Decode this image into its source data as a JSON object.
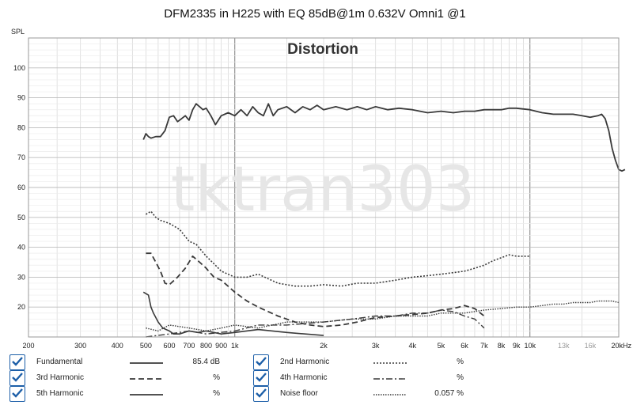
{
  "chart_data": {
    "type": "line",
    "title": "DFM2335 in H225 with EQ 85dB@1m 0.632V Omni1 @1",
    "subtitle": "Distortion",
    "ylabel": "SPL",
    "xscale": "log",
    "xlim": [
      200,
      20000
    ],
    "ylim": [
      10,
      110
    ],
    "y_ticks": [
      20,
      30,
      40,
      50,
      60,
      70,
      80,
      90,
      100
    ],
    "x_ticks": [
      {
        "v": 200,
        "label": "200"
      },
      {
        "v": 300,
        "label": "300"
      },
      {
        "v": 400,
        "label": "400"
      },
      {
        "v": 500,
        "label": "500"
      },
      {
        "v": 600,
        "label": "600"
      },
      {
        "v": 700,
        "label": "700"
      },
      {
        "v": 800,
        "label": "800"
      },
      {
        "v": 900,
        "label": "900"
      },
      {
        "v": 1000,
        "label": "1k"
      },
      {
        "v": 2000,
        "label": "2k"
      },
      {
        "v": 3000,
        "label": "3k"
      },
      {
        "v": 4000,
        "label": "4k"
      },
      {
        "v": 5000,
        "label": "5k"
      },
      {
        "v": 6000,
        "label": "6k"
      },
      {
        "v": 7000,
        "label": "7k"
      },
      {
        "v": 8000,
        "label": "8k"
      },
      {
        "v": 9000,
        "label": "9k"
      },
      {
        "v": 10000,
        "label": "10k"
      },
      {
        "v": 13000,
        "label": "13k",
        "minor": true
      },
      {
        "v": 16000,
        "label": "16k",
        "minor": true
      },
      {
        "v": 20000,
        "label": "20kHz"
      }
    ],
    "grid": true,
    "watermark": "tktran303",
    "series": [
      {
        "name": "Fundamental",
        "dash": "",
        "width": 1.8,
        "points": [
          [
            490,
            76
          ],
          [
            500,
            78
          ],
          [
            510,
            77
          ],
          [
            520,
            76.5
          ],
          [
            540,
            77
          ],
          [
            560,
            77
          ],
          [
            580,
            79
          ],
          [
            600,
            83.5
          ],
          [
            620,
            84
          ],
          [
            640,
            82
          ],
          [
            660,
            83
          ],
          [
            680,
            84
          ],
          [
            700,
            82.5
          ],
          [
            720,
            86
          ],
          [
            740,
            88
          ],
          [
            760,
            87
          ],
          [
            780,
            86
          ],
          [
            800,
            86.5
          ],
          [
            830,
            84
          ],
          [
            860,
            81
          ],
          [
            900,
            84
          ],
          [
            950,
            85
          ],
          [
            1000,
            84
          ],
          [
            1050,
            86
          ],
          [
            1100,
            84
          ],
          [
            1150,
            87
          ],
          [
            1200,
            85
          ],
          [
            1250,
            84
          ],
          [
            1300,
            88
          ],
          [
            1350,
            84
          ],
          [
            1400,
            86
          ],
          [
            1500,
            87
          ],
          [
            1600,
            85
          ],
          [
            1700,
            87
          ],
          [
            1800,
            86
          ],
          [
            1900,
            87.5
          ],
          [
            2000,
            86
          ],
          [
            2200,
            87
          ],
          [
            2400,
            86
          ],
          [
            2600,
            87
          ],
          [
            2800,
            86
          ],
          [
            3000,
            87
          ],
          [
            3300,
            86
          ],
          [
            3600,
            86.5
          ],
          [
            4000,
            86
          ],
          [
            4500,
            85
          ],
          [
            5000,
            85.5
          ],
          [
            5500,
            85
          ],
          [
            6000,
            85.5
          ],
          [
            6500,
            85.5
          ],
          [
            7000,
            86
          ],
          [
            7500,
            86
          ],
          [
            8000,
            86
          ],
          [
            8500,
            86.5
          ],
          [
            9000,
            86.5
          ],
          [
            10000,
            86
          ],
          [
            11000,
            85
          ],
          [
            12000,
            84.5
          ],
          [
            13000,
            84.5
          ],
          [
            14000,
            84.5
          ],
          [
            15000,
            84
          ],
          [
            16000,
            83.5
          ],
          [
            17000,
            84
          ],
          [
            17500,
            84.5
          ],
          [
            18000,
            83
          ],
          [
            18500,
            79
          ],
          [
            19000,
            73
          ],
          [
            19500,
            69
          ],
          [
            20000,
            66
          ],
          [
            20500,
            65.5
          ],
          [
            21000,
            66
          ]
        ]
      },
      {
        "name": "2nd Harmonic",
        "dash": "2 2",
        "width": 1.6,
        "points": [
          [
            500,
            51
          ],
          [
            520,
            52
          ],
          [
            540,
            50
          ],
          [
            560,
            49
          ],
          [
            600,
            48
          ],
          [
            650,
            46
          ],
          [
            700,
            42
          ],
          [
            740,
            41
          ],
          [
            800,
            37
          ],
          [
            860,
            34
          ],
          [
            900,
            32
          ],
          [
            1000,
            30
          ],
          [
            1100,
            30
          ],
          [
            1200,
            31
          ],
          [
            1400,
            28
          ],
          [
            1600,
            27
          ],
          [
            1800,
            27
          ],
          [
            2000,
            27.5
          ],
          [
            2300,
            27
          ],
          [
            2600,
            28
          ],
          [
            3000,
            28
          ],
          [
            3500,
            29
          ],
          [
            4000,
            30
          ],
          [
            4500,
            30.5
          ],
          [
            5000,
            31
          ],
          [
            5500,
            31.5
          ],
          [
            6000,
            32
          ],
          [
            6500,
            33
          ],
          [
            7000,
            34
          ],
          [
            7500,
            35.5
          ],
          [
            8000,
            36.5
          ],
          [
            8500,
            37.5
          ],
          [
            9000,
            37
          ],
          [
            9500,
            37
          ],
          [
            10000,
            37
          ]
        ]
      },
      {
        "name": "3rd Harmonic",
        "dash": "7 4",
        "width": 1.8,
        "points": [
          [
            500,
            38
          ],
          [
            520,
            38
          ],
          [
            540,
            35
          ],
          [
            560,
            32
          ],
          [
            580,
            28
          ],
          [
            600,
            27.5
          ],
          [
            640,
            30
          ],
          [
            680,
            33
          ],
          [
            720,
            37
          ],
          [
            760,
            35
          ],
          [
            800,
            33
          ],
          [
            850,
            30
          ],
          [
            900,
            29
          ],
          [
            1000,
            25
          ],
          [
            1100,
            22
          ],
          [
            1200,
            20
          ],
          [
            1400,
            17
          ],
          [
            1600,
            15
          ],
          [
            1800,
            14
          ],
          [
            2000,
            13.5
          ],
          [
            2300,
            14
          ],
          [
            2600,
            15
          ],
          [
            3000,
            16.5
          ],
          [
            3500,
            17
          ],
          [
            4000,
            17.5
          ],
          [
            4500,
            18
          ],
          [
            5000,
            19
          ],
          [
            5500,
            19.5
          ],
          [
            6000,
            20.5
          ],
          [
            6500,
            19.5
          ],
          [
            7000,
            17
          ]
        ]
      },
      {
        "name": "4th Harmonic",
        "dash": "8 3 2 3",
        "width": 1.4,
        "points": [
          [
            500,
            10
          ],
          [
            600,
            11
          ],
          [
            700,
            12
          ],
          [
            800,
            11
          ],
          [
            1000,
            12
          ],
          [
            1200,
            14
          ],
          [
            1500,
            14
          ],
          [
            2000,
            15
          ],
          [
            2500,
            16
          ],
          [
            3000,
            17
          ],
          [
            3500,
            17
          ],
          [
            4000,
            18
          ],
          [
            4500,
            18
          ],
          [
            5000,
            19
          ],
          [
            5500,
            18.5
          ],
          [
            6000,
            17
          ],
          [
            6500,
            16
          ],
          [
            7000,
            13
          ]
        ]
      },
      {
        "name": "5th Harmonic",
        "dash": "",
        "width": 1.6,
        "points": [
          [
            490,
            25
          ],
          [
            510,
            24
          ],
          [
            520,
            20
          ],
          [
            530,
            18
          ],
          [
            550,
            15
          ],
          [
            570,
            13
          ],
          [
            600,
            12
          ],
          [
            620,
            11
          ],
          [
            650,
            11
          ],
          [
            700,
            12
          ],
          [
            750,
            11.5
          ],
          [
            800,
            12
          ],
          [
            900,
            11
          ],
          [
            1000,
            11.5
          ],
          [
            1200,
            12.5
          ],
          [
            1500,
            11.5
          ],
          [
            2000,
            10.5
          ]
        ]
      },
      {
        "name": "Noise floor",
        "dash": "1.5 1.5",
        "width": 1.4,
        "points": [
          [
            500,
            13
          ],
          [
            550,
            12
          ],
          [
            600,
            14
          ],
          [
            700,
            13
          ],
          [
            800,
            12
          ],
          [
            900,
            13
          ],
          [
            1000,
            14
          ],
          [
            1200,
            13
          ],
          [
            1500,
            15
          ],
          [
            2000,
            15
          ],
          [
            2500,
            16
          ],
          [
            3000,
            16
          ],
          [
            3500,
            17
          ],
          [
            4000,
            17
          ],
          [
            4500,
            17
          ],
          [
            5000,
            18
          ],
          [
            6000,
            18
          ],
          [
            7000,
            19
          ],
          [
            8000,
            19.5
          ],
          [
            9000,
            20
          ],
          [
            10000,
            20
          ],
          [
            11000,
            20.5
          ],
          [
            12000,
            21
          ],
          [
            13000,
            21
          ],
          [
            14000,
            21.5
          ],
          [
            15000,
            21.5
          ],
          [
            16000,
            21.5
          ],
          [
            17000,
            22
          ],
          [
            18000,
            22
          ],
          [
            19000,
            22
          ],
          [
            20000,
            21.5
          ]
        ]
      }
    ]
  },
  "legend": {
    "items": [
      {
        "name": "Fundamental",
        "value": "85.4 dB"
      },
      {
        "name": "2nd Harmonic",
        "value": "%"
      },
      {
        "name": "3rd Harmonic",
        "value": "%"
      },
      {
        "name": "4th Harmonic",
        "value": "%"
      },
      {
        "name": "5th Harmonic",
        "value": "%"
      },
      {
        "name": "Noise floor",
        "value": "0.057 %"
      }
    ]
  },
  "colors": {
    "line": "#3a3a3a",
    "grid": "#d9d9d9",
    "grid_major": "#8a8a8a",
    "checkbox": "#1d5fa8"
  }
}
